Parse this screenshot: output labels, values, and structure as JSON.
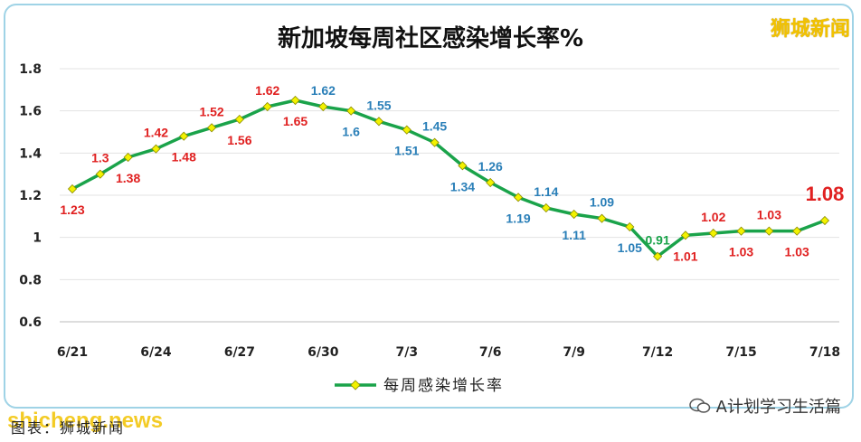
{
  "brand": "狮城新闻",
  "footer_source": "图表：狮城新闻",
  "watermark": "shicheng.news",
  "wechat_account": "A计划学习生活篇",
  "colors": {
    "line": "#1aa34a",
    "marker": "#f2f200",
    "label_red": "#e02020",
    "label_blue": "#2a7fb8",
    "label_green": "#1aa34a"
  },
  "chart_data": {
    "type": "line",
    "title": "新加坡每周社区感染增长率%",
    "xlabel": "",
    "ylabel": "",
    "ylim": [
      0.6,
      1.8
    ],
    "yticks": [
      "0.6",
      "0.8",
      "1",
      "1.2",
      "1.4",
      "1.6",
      "1.8"
    ],
    "grid": true,
    "legend": "bottom",
    "x_tick_labels": [
      "6/21",
      "6/24",
      "6/27",
      "6/30",
      "7/3",
      "7/6",
      "7/9",
      "7/12",
      "7/15",
      "7/18"
    ],
    "series": [
      {
        "name": "每周感染增长率",
        "dates": [
          "6/21",
          "6/22",
          "6/23",
          "6/24",
          "6/25",
          "6/26",
          "6/27",
          "6/28",
          "6/29",
          "6/30",
          "7/1",
          "7/2",
          "7/3",
          "7/4",
          "7/5",
          "7/6",
          "7/7",
          "7/8",
          "7/9",
          "7/10",
          "7/11",
          "7/12",
          "7/13",
          "7/14",
          "7/15",
          "7/16",
          "7/17",
          "7/18"
        ],
        "values": [
          1.23,
          1.3,
          1.38,
          1.42,
          1.48,
          1.52,
          1.56,
          1.62,
          1.65,
          1.62,
          1.6,
          1.55,
          1.51,
          1.45,
          1.34,
          1.26,
          1.19,
          1.14,
          1.11,
          1.09,
          1.05,
          0.91,
          1.01,
          1.02,
          1.03,
          1.03,
          1.03,
          1.08
        ],
        "labels": [
          "1.23",
          "1.3",
          "1.38",
          "1.42",
          "1.48",
          "1.52",
          "1.56",
          "1.62",
          "1.65",
          "1.62",
          "1.6",
          "1.55",
          "1.51",
          "1.45",
          "1.34",
          "1.26",
          "1.19",
          "1.14",
          "1.11",
          "1.09",
          "1.05",
          "0.91",
          "1.01",
          "1.02",
          "1.03",
          "1.03",
          "1.03",
          "1.08"
        ],
        "label_position": [
          "below",
          "above",
          "below",
          "above",
          "below",
          "above",
          "below",
          "above",
          "below",
          "above",
          "below",
          "above",
          "below",
          "above",
          "below",
          "above",
          "below",
          "above",
          "below",
          "above",
          "below",
          "above",
          "below",
          "above",
          "below",
          "above",
          "below",
          "above"
        ],
        "label_color": [
          "red",
          "red",
          "red",
          "red",
          "red",
          "red",
          "red",
          "red",
          "red",
          "blue",
          "blue",
          "blue",
          "blue",
          "blue",
          "blue",
          "blue",
          "blue",
          "blue",
          "blue",
          "blue",
          "blue",
          "green",
          "red",
          "red",
          "red",
          "red",
          "red",
          "red"
        ]
      }
    ]
  }
}
